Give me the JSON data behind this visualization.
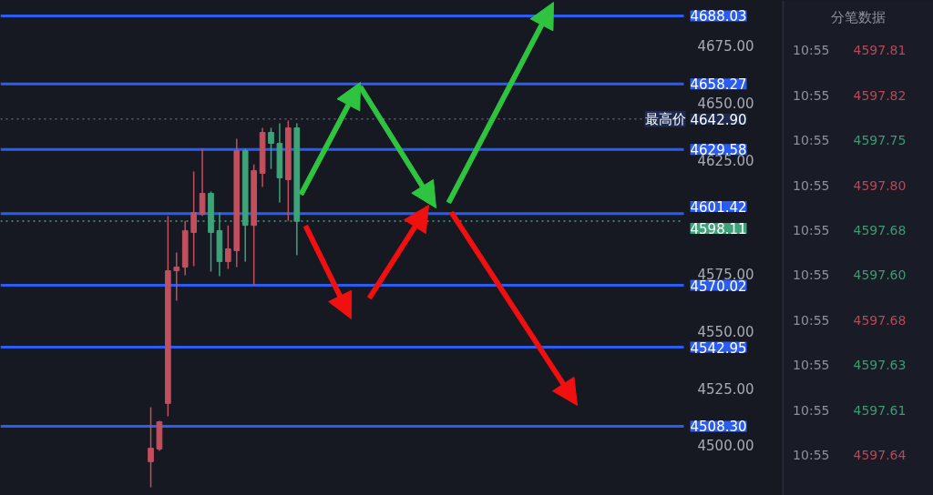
{
  "chart_data": [
    {
      "type": "candlestick",
      "categories": [
        null,
        null,
        null,
        null,
        null,
        null,
        null,
        null,
        null,
        null,
        null,
        null,
        null,
        null,
        null,
        null,
        null,
        null,
        null,
        null,
        null,
        null,
        null,
        null,
        null,
        null,
        null,
        null,
        null,
        null,
        null,
        null,
        null,
        null,
        null,
        null,
        null,
        null,
        null,
        null,
        null,
        null,
        null,
        null,
        null,
        null,
        null,
        null,
        null,
        null,
        null,
        null,
        null,
        null,
        null,
        null,
        null,
        null,
        null,
        null,
        null,
        null,
        null,
        null,
        null,
        null,
        null,
        null,
        null,
        null,
        null,
        null,
        null,
        null,
        null,
        null,
        null,
        null,
        null,
        null,
        null,
        null,
        null,
        null,
        null,
        null,
        null,
        null,
        null,
        null,
        null
      ],
      "ohlc": [
        null,
        null,
        null,
        null,
        null,
        null,
        null,
        null,
        null,
        null,
        null,
        null,
        null,
        null,
        null,
        null,
        null,
        [
          4492.8,
          4516.7,
          4481.6,
          4498.7
        ],
        [
          4498.3,
          4510.7,
          4497.5,
          4510.3
        ],
        [
          4518.3,
          4600.3,
          4512.7,
          4576.4
        ],
        [
          4576.4,
          4584.4,
          4563.3,
          4578.0
        ],
        [
          4578.0,
          4598.3,
          4574.4,
          4594.0
        ],
        [
          4593.2,
          4619.9,
          4578.4,
          4601.9
        ],
        [
          4601.1,
          4629.8,
          4600.3,
          4610.3
        ],
        [
          4610.3,
          4611.1,
          4576.0,
          4593.2
        ],
        [
          4594.0,
          4601.9,
          4574.0,
          4580.4
        ],
        [
          4580.4,
          4596.3,
          4577.2,
          4586.0
        ],
        [
          4585.2,
          4634.2,
          4578.0,
          4629.0
        ],
        [
          4629.0,
          4629.8,
          4580.4,
          4596.3
        ],
        [
          4596.3,
          4623.0,
          4570.1,
          4620.3
        ],
        [
          4619.1,
          4639.0,
          4613.1,
          4637.0
        ],
        [
          4637.0,
          4639.0,
          4621.0,
          4632.2
        ],
        [
          4632.2,
          4641.0,
          4606.3,
          4617.1
        ],
        [
          4616.3,
          4642.2,
          4598.3,
          4639.0
        ],
        [
          4639.0,
          4641.0,
          4583.2,
          4598.1
        ],
        null,
        null,
        null,
        null,
        null,
        null,
        null,
        null,
        null,
        null,
        null,
        null,
        null,
        null,
        null,
        null,
        null,
        null,
        null,
        null,
        null,
        null,
        null,
        null,
        null,
        null,
        null,
        null,
        null,
        null,
        null,
        null,
        null,
        null,
        null,
        null,
        null,
        null,
        null,
        null,
        null,
        null,
        null,
        null,
        null,
        null,
        null,
        null,
        null,
        null,
        null,
        null,
        null,
        null,
        null,
        null
      ],
      "colors": [
        null,
        null,
        null,
        null,
        null,
        null,
        null,
        null,
        null,
        null,
        null,
        null,
        null,
        null,
        null,
        null,
        null,
        "#c24f5e",
        "#c24f5e",
        "#c24f5e",
        "#c24f5e",
        "#c24f5e",
        "#c24f5e",
        "#c24f5e",
        "#3fa37a",
        "#3fa37a",
        "#c24f5e",
        "#c24f5e",
        "#3fa37a",
        "#c24f5e",
        "#c24f5e",
        "#3fa37a",
        "#3fa37a",
        "#c24f5e",
        "#3fa37a",
        null,
        null,
        null,
        null,
        null,
        null,
        null,
        null,
        null,
        null,
        null,
        null,
        null,
        null,
        null,
        null,
        null,
        null,
        null,
        null,
        null,
        null,
        null,
        null,
        null,
        null,
        null,
        null,
        null,
        null,
        null,
        null,
        null,
        null,
        null,
        null,
        null,
        null,
        null,
        null,
        null,
        null,
        null,
        null,
        null,
        null,
        null,
        null,
        null,
        null,
        null,
        null,
        null,
        null,
        null,
        null
      ],
      "ylim": [
        4478,
        4694.8
      ],
      "annotations": [
        {
          "text": "最高价",
          "y": 4642.9
        }
      ],
      "yticks": [
        {
          "value": 4500,
          "label": "4500.00"
        },
        {
          "value": 4525,
          "label": "4525.00"
        },
        {
          "value": 4550,
          "label": "4550.00"
        },
        {
          "value": 4575,
          "label": "4575.00"
        },
        {
          "value": 4625,
          "label": "4625.00"
        },
        {
          "value": 4650,
          "label": "4650.00"
        },
        {
          "value": 4675,
          "label": "4675.00"
        }
      ],
      "tick_labels": "y",
      "grid": false,
      "ref_lines": [
        {
          "axis": "y",
          "value": 4688.03,
          "label": "4688.03",
          "color": "#2b5cf0",
          "line_style": "solid"
        },
        {
          "axis": "y",
          "value": 4658.27,
          "label": "4658.27",
          "color": "#2b5cf0",
          "line_style": "solid"
        },
        {
          "axis": "y",
          "value": 4642.9,
          "label": "4642.90",
          "color": "#5a5f70",
          "line_style": "dotted"
        },
        {
          "axis": "y",
          "value": 4629.58,
          "label": "4629.58",
          "color": "#2b5cf0",
          "line_style": "solid"
        },
        {
          "axis": "y",
          "value": 4601.42,
          "label": "4601.42",
          "color": "#2b5cf0",
          "line_style": "solid"
        },
        {
          "axis": "y",
          "value": 4598.11,
          "label": "4598.11",
          "color": "#3fa37a",
          "line_style": "dotted"
        },
        {
          "axis": "y",
          "value": 4570.02,
          "label": "4570.02",
          "color": "#2b5cf0",
          "line_style": "solid"
        },
        {
          "axis": "y",
          "value": 4542.95,
          "label": "4542.95",
          "color": "#2b5cf0",
          "line_style": "solid"
        },
        {
          "axis": "y",
          "value": 4508.3,
          "label": "4508.30",
          "color": "#2b5cf0",
          "line_style": "solid"
        }
      ]
    },
    {
      "type": "other",
      "title": "分笔数据",
      "annotations": [
        "10:55 4597.81",
        "10:55 4597.82",
        "10:55 4597.75",
        "10:55 4597.80",
        "10:55 4597.68",
        "10:55 4597.60",
        "10:55 4597.68",
        "10:55 4597.63",
        "10:55 4597.61",
        "10:55 4597.64"
      ],
      "colors": [
        "#b44a57",
        "#b44a57",
        "#3d9a72",
        "#b44a57",
        "#3d9a72",
        "#3d9a72",
        "#b44a57",
        "#3d9a72",
        "#3d9a72",
        "#b44a57"
      ]
    }
  ]
}
